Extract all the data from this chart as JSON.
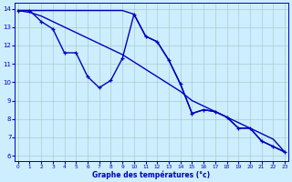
{
  "xlabel": "Graphe des températures (°c)",
  "bg_color": "#cceeff",
  "grid_color": "#aacccc",
  "line_color": "#0000bb",
  "ylim": [
    5.7,
    14.3
  ],
  "xlim": [
    -0.3,
    23.3
  ],
  "yticks": [
    6,
    7,
    8,
    9,
    10,
    11,
    12,
    13,
    14
  ],
  "xticks": [
    0,
    1,
    2,
    3,
    4,
    5,
    6,
    7,
    8,
    9,
    10,
    11,
    12,
    13,
    14,
    15,
    16,
    17,
    18,
    19,
    20,
    21,
    22,
    23
  ],
  "series_marked_x": [
    0,
    1,
    2,
    3,
    4,
    5,
    6,
    7,
    8,
    9,
    10,
    11,
    12,
    13,
    14,
    15,
    16,
    17,
    18,
    19,
    20,
    21,
    22,
    23
  ],
  "series_marked_y": [
    13.9,
    13.9,
    13.3,
    12.9,
    11.6,
    11.6,
    10.3,
    9.7,
    10.1,
    11.3,
    13.7,
    12.5,
    12.2,
    11.2,
    9.9,
    8.3,
    8.5,
    8.4,
    8.1,
    7.5,
    7.5,
    6.8,
    6.5,
    6.2
  ],
  "series_smooth_x": [
    0,
    1,
    2,
    3,
    4,
    5,
    6,
    7,
    8,
    9,
    10,
    11,
    12,
    13,
    14,
    15,
    16,
    17,
    18,
    19,
    20,
    21,
    22,
    23
  ],
  "series_smooth_y": [
    13.9,
    13.8,
    13.6,
    13.3,
    13.0,
    12.7,
    12.4,
    12.1,
    11.8,
    11.5,
    11.1,
    10.7,
    10.3,
    9.9,
    9.5,
    9.0,
    8.7,
    8.4,
    8.1,
    7.8,
    7.5,
    7.2,
    6.9,
    6.2
  ],
  "series_flat_x": [
    0,
    1,
    2,
    3,
    4,
    5,
    6,
    7,
    8,
    9,
    10,
    11,
    12,
    13,
    14,
    15,
    16,
    17,
    18,
    19,
    20,
    21,
    22,
    23
  ],
  "series_flat_y": [
    13.9,
    13.9,
    13.9,
    13.9,
    13.9,
    13.9,
    13.9,
    13.9,
    13.9,
    13.9,
    13.7,
    12.5,
    12.2,
    11.2,
    9.9,
    8.3,
    8.5,
    8.4,
    8.1,
    7.5,
    7.5,
    6.8,
    6.5,
    6.2
  ]
}
